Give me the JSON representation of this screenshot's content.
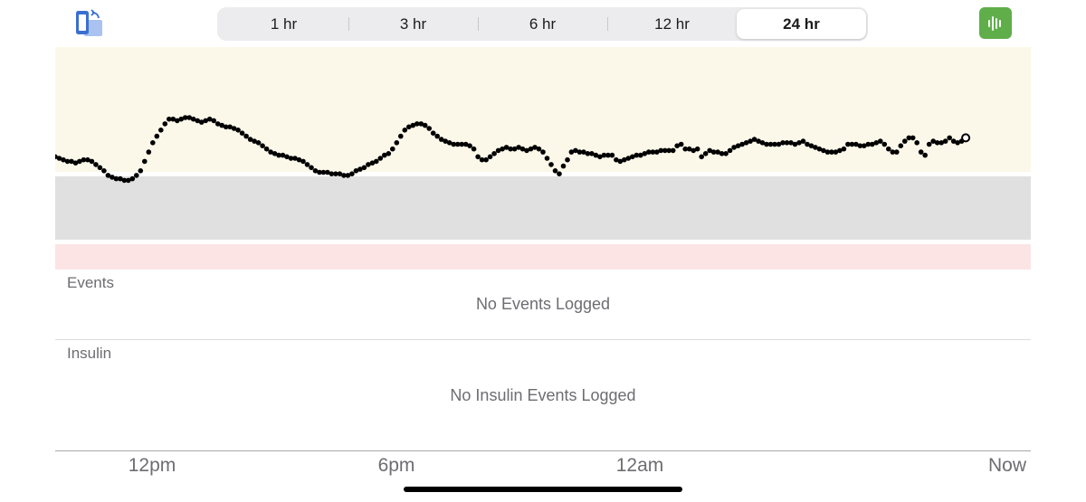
{
  "header": {
    "rotate_icon": "rotate-screen-icon",
    "ranges": [
      {
        "label": "1 hr",
        "selected": false
      },
      {
        "label": "3 hr",
        "selected": false
      },
      {
        "label": "6 hr",
        "selected": false
      },
      {
        "label": "12 hr",
        "selected": false
      },
      {
        "label": "24 hr",
        "selected": true
      }
    ],
    "bars_icon": "audio-bars-icon"
  },
  "colors": {
    "high_band": "#fcf8e9",
    "target_band": "#e0e0e0",
    "low_band": "#fce4e4",
    "dots": "#000000",
    "bars_button": "#5fae4a",
    "rotate_icon": "#3a6fd0"
  },
  "chart_data": {
    "type": "scatter",
    "x_ticks": [
      "12pm",
      "6pm",
      "12am",
      "Now"
    ],
    "bands": [
      "high",
      "target",
      "low"
    ],
    "y_range": [
      0,
      100
    ],
    "x_range": [
      0,
      24
    ],
    "series": [
      {
        "points": [
          [
            0.0,
            50.7
          ],
          [
            0.1,
            50.0
          ],
          [
            0.2,
            49.3
          ],
          [
            0.3,
            48.6
          ],
          [
            0.4,
            48.6
          ],
          [
            0.5,
            47.9
          ],
          [
            0.6,
            48.6
          ],
          [
            0.7,
            49.3
          ],
          [
            0.8,
            49.3
          ],
          [
            0.9,
            48.6
          ],
          [
            1.0,
            47.2
          ],
          [
            1.1,
            45.8
          ],
          [
            1.2,
            44.4
          ],
          [
            1.3,
            42.3
          ],
          [
            1.4,
            41.5
          ],
          [
            1.5,
            40.8
          ],
          [
            1.6,
            40.8
          ],
          [
            1.7,
            40.1
          ],
          [
            1.8,
            40.1
          ],
          [
            1.9,
            40.8
          ],
          [
            2.0,
            42.3
          ],
          [
            2.1,
            44.4
          ],
          [
            2.2,
            48.6
          ],
          [
            2.3,
            52.8
          ],
          [
            2.4,
            57.0
          ],
          [
            2.5,
            59.9
          ],
          [
            2.6,
            62.7
          ],
          [
            2.7,
            65.5
          ],
          [
            2.8,
            67.6
          ],
          [
            2.9,
            67.6
          ],
          [
            3.0,
            66.9
          ],
          [
            3.1,
            67.6
          ],
          [
            3.2,
            68.3
          ],
          [
            3.3,
            68.3
          ],
          [
            3.4,
            67.6
          ],
          [
            3.5,
            66.9
          ],
          [
            3.6,
            66.2
          ],
          [
            3.7,
            66.9
          ],
          [
            3.8,
            67.6
          ],
          [
            3.9,
            66.9
          ],
          [
            4.0,
            65.5
          ],
          [
            4.1,
            64.8
          ],
          [
            4.2,
            64.1
          ],
          [
            4.3,
            64.1
          ],
          [
            4.4,
            63.4
          ],
          [
            4.5,
            62.7
          ],
          [
            4.6,
            61.3
          ],
          [
            4.7,
            59.9
          ],
          [
            4.8,
            58.5
          ],
          [
            4.9,
            57.7
          ],
          [
            5.0,
            57.0
          ],
          [
            5.1,
            55.6
          ],
          [
            5.2,
            54.2
          ],
          [
            5.3,
            52.8
          ],
          [
            5.4,
            52.1
          ],
          [
            5.5,
            51.4
          ],
          [
            5.6,
            51.4
          ],
          [
            5.7,
            50.7
          ],
          [
            5.8,
            50.0
          ],
          [
            5.9,
            50.0
          ],
          [
            6.0,
            49.3
          ],
          [
            6.1,
            48.6
          ],
          [
            6.2,
            47.2
          ],
          [
            6.3,
            45.8
          ],
          [
            6.4,
            44.4
          ],
          [
            6.5,
            43.7
          ],
          [
            6.6,
            43.7
          ],
          [
            6.7,
            43.7
          ],
          [
            6.8,
            43.0
          ],
          [
            6.9,
            43.0
          ],
          [
            7.0,
            43.0
          ],
          [
            7.1,
            42.3
          ],
          [
            7.2,
            42.3
          ],
          [
            7.3,
            43.0
          ],
          [
            7.4,
            44.4
          ],
          [
            7.5,
            45.1
          ],
          [
            7.6,
            45.8
          ],
          [
            7.7,
            47.2
          ],
          [
            7.8,
            47.9
          ],
          [
            7.9,
            48.6
          ],
          [
            8.0,
            50.0
          ],
          [
            8.1,
            51.4
          ],
          [
            8.2,
            52.1
          ],
          [
            8.3,
            54.2
          ],
          [
            8.4,
            57.0
          ],
          [
            8.5,
            59.9
          ],
          [
            8.6,
            62.7
          ],
          [
            8.7,
            64.1
          ],
          [
            8.8,
            64.8
          ],
          [
            8.9,
            65.5
          ],
          [
            9.0,
            65.5
          ],
          [
            9.1,
            64.8
          ],
          [
            9.2,
            63.4
          ],
          [
            9.3,
            61.3
          ],
          [
            9.4,
            59.9
          ],
          [
            9.5,
            58.5
          ],
          [
            9.6,
            57.7
          ],
          [
            9.7,
            57.0
          ],
          [
            9.8,
            56.3
          ],
          [
            9.9,
            56.3
          ],
          [
            10.0,
            56.3
          ],
          [
            10.1,
            56.3
          ],
          [
            10.2,
            55.6
          ],
          [
            10.3,
            54.2
          ],
          [
            10.4,
            50.7
          ],
          [
            10.5,
            49.3
          ],
          [
            10.6,
            49.3
          ],
          [
            10.7,
            50.7
          ],
          [
            10.8,
            52.1
          ],
          [
            10.9,
            53.5
          ],
          [
            11.0,
            54.2
          ],
          [
            11.1,
            54.9
          ],
          [
            11.2,
            54.2
          ],
          [
            11.3,
            54.2
          ],
          [
            11.4,
            54.9
          ],
          [
            11.5,
            54.2
          ],
          [
            11.6,
            53.5
          ],
          [
            11.7,
            54.2
          ],
          [
            11.8,
            54.9
          ],
          [
            11.9,
            54.2
          ],
          [
            12.0,
            52.8
          ],
          [
            12.1,
            50.0
          ],
          [
            12.2,
            47.2
          ],
          [
            12.3,
            44.4
          ],
          [
            12.4,
            43.0
          ],
          [
            12.5,
            46.5
          ],
          [
            12.6,
            49.3
          ],
          [
            12.7,
            52.8
          ],
          [
            12.8,
            53.5
          ],
          [
            12.9,
            52.8
          ],
          [
            13.0,
            52.8
          ],
          [
            13.1,
            52.1
          ],
          [
            13.2,
            52.1
          ],
          [
            13.3,
            51.4
          ],
          [
            13.4,
            50.7
          ],
          [
            13.5,
            51.4
          ],
          [
            13.6,
            51.4
          ],
          [
            13.7,
            51.4
          ],
          [
            13.8,
            49.3
          ],
          [
            13.9,
            48.6
          ],
          [
            14.0,
            49.3
          ],
          [
            14.1,
            50.0
          ],
          [
            14.2,
            50.7
          ],
          [
            14.3,
            51.4
          ],
          [
            14.4,
            51.4
          ],
          [
            14.5,
            52.1
          ],
          [
            14.6,
            52.8
          ],
          [
            14.7,
            52.8
          ],
          [
            14.8,
            52.8
          ],
          [
            14.9,
            53.5
          ],
          [
            15.0,
            53.5
          ],
          [
            15.1,
            53.5
          ],
          [
            15.2,
            53.5
          ],
          [
            15.3,
            55.6
          ],
          [
            15.4,
            56.3
          ],
          [
            15.5,
            54.2
          ],
          [
            15.6,
            54.2
          ],
          [
            15.7,
            53.5
          ],
          [
            15.8,
            54.2
          ],
          [
            15.9,
            50.7
          ],
          [
            16.0,
            52.1
          ],
          [
            16.1,
            53.5
          ],
          [
            16.2,
            52.8
          ],
          [
            16.3,
            52.8
          ],
          [
            16.4,
            52.1
          ],
          [
            16.5,
            52.1
          ],
          [
            16.6,
            53.5
          ],
          [
            16.7,
            54.9
          ],
          [
            16.8,
            55.6
          ],
          [
            16.9,
            56.3
          ],
          [
            17.0,
            57.0
          ],
          [
            17.1,
            57.7
          ],
          [
            17.2,
            58.5
          ],
          [
            17.3,
            57.7
          ],
          [
            17.4,
            57.0
          ],
          [
            17.5,
            56.3
          ],
          [
            17.6,
            56.3
          ],
          [
            17.7,
            56.3
          ],
          [
            17.8,
            56.3
          ],
          [
            17.9,
            57.0
          ],
          [
            18.0,
            57.0
          ],
          [
            18.1,
            57.0
          ],
          [
            18.2,
            56.3
          ],
          [
            18.3,
            57.0
          ],
          [
            18.4,
            57.7
          ],
          [
            18.5,
            56.3
          ],
          [
            18.6,
            55.6
          ],
          [
            18.7,
            54.9
          ],
          [
            18.8,
            54.2
          ],
          [
            18.9,
            53.5
          ],
          [
            19.0,
            52.8
          ],
          [
            19.1,
            52.8
          ],
          [
            19.2,
            52.8
          ],
          [
            19.3,
            53.5
          ],
          [
            19.4,
            54.2
          ],
          [
            19.5,
            56.3
          ],
          [
            19.6,
            56.3
          ],
          [
            19.7,
            56.3
          ],
          [
            19.8,
            55.6
          ],
          [
            19.9,
            55.6
          ],
          [
            20.0,
            56.3
          ],
          [
            20.1,
            56.3
          ],
          [
            20.2,
            57.0
          ],
          [
            20.3,
            57.7
          ],
          [
            20.4,
            56.3
          ],
          [
            20.5,
            54.2
          ],
          [
            20.6,
            52.8
          ],
          [
            20.7,
            52.8
          ],
          [
            20.8,
            55.6
          ],
          [
            20.9,
            57.7
          ],
          [
            21.0,
            59.2
          ],
          [
            21.1,
            59.2
          ],
          [
            21.2,
            57.0
          ],
          [
            21.3,
            52.8
          ],
          [
            21.4,
            51.4
          ],
          [
            21.5,
            56.3
          ],
          [
            21.6,
            57.7
          ],
          [
            21.7,
            57.0
          ],
          [
            21.8,
            57.0
          ],
          [
            21.9,
            57.7
          ],
          [
            22.0,
            59.2
          ],
          [
            22.1,
            57.7
          ],
          [
            22.2,
            57.0
          ],
          [
            22.3,
            57.7
          ]
        ],
        "last_point": [
          22.4,
          59.2
        ]
      }
    ]
  },
  "events": {
    "label": "Events",
    "empty_message": "No Events Logged"
  },
  "insulin": {
    "label": "Insulin",
    "empty_message": "No Insulin Events Logged"
  }
}
